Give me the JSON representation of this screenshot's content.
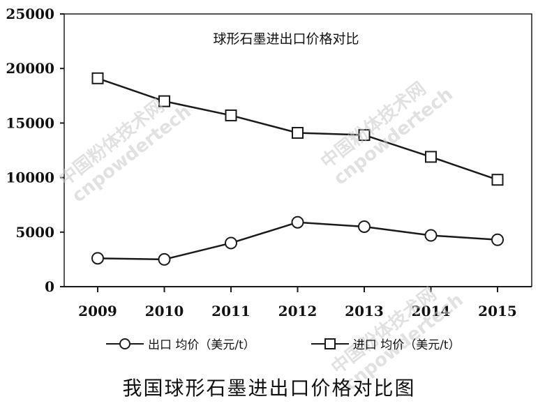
{
  "chart_data": {
    "type": "line",
    "title": "球形石墨进出口价格对比",
    "categories": [
      "2009",
      "2010",
      "2011",
      "2012",
      "2013",
      "2014",
      "2015"
    ],
    "ylim": [
      0,
      25000
    ],
    "yticks": [
      0,
      5000,
      10000,
      15000,
      20000,
      25000
    ],
    "series": [
      {
        "name": "出口 均价（美元/t）",
        "marker": "circle",
        "values": [
          2600,
          2500,
          4000,
          5900,
          5500,
          4700,
          4300
        ]
      },
      {
        "name": "进口 均价（美元/t）",
        "marker": "square",
        "values": [
          19100,
          17000,
          15700,
          14100,
          13900,
          11900,
          9800
        ]
      }
    ],
    "legend_position": "bottom"
  },
  "caption": "我国球形石墨进出口价格对比图",
  "watermark": {
    "line1": "中国粉体技术网",
    "line2": "cnpowdertech"
  },
  "colors": {
    "line": "#1a1a1a",
    "text": "#111111",
    "watermark": "#c9c9c9"
  }
}
